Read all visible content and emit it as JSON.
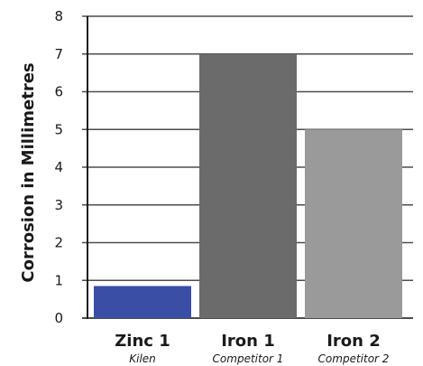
{
  "chart_data": {
    "type": "bar",
    "categories": [
      "Zinc 1",
      "Iron 1",
      "Iron 2"
    ],
    "sublabels": [
      "Kilen",
      "Competitor 1",
      "Competitor 2"
    ],
    "values": [
      0.85,
      7,
      5
    ],
    "ylabel": "Corrosion in Millimetres",
    "xlabel": "",
    "ylim": [
      0,
      8
    ],
    "yticks": [
      "0",
      "1",
      "2",
      "3",
      "4",
      "5",
      "6",
      "7",
      "8"
    ],
    "grid": true,
    "colors": [
      "#3b4ea6",
      "#6b6b6b",
      "#9a9a9a"
    ],
    "grid_color": "#4d4d4d"
  }
}
